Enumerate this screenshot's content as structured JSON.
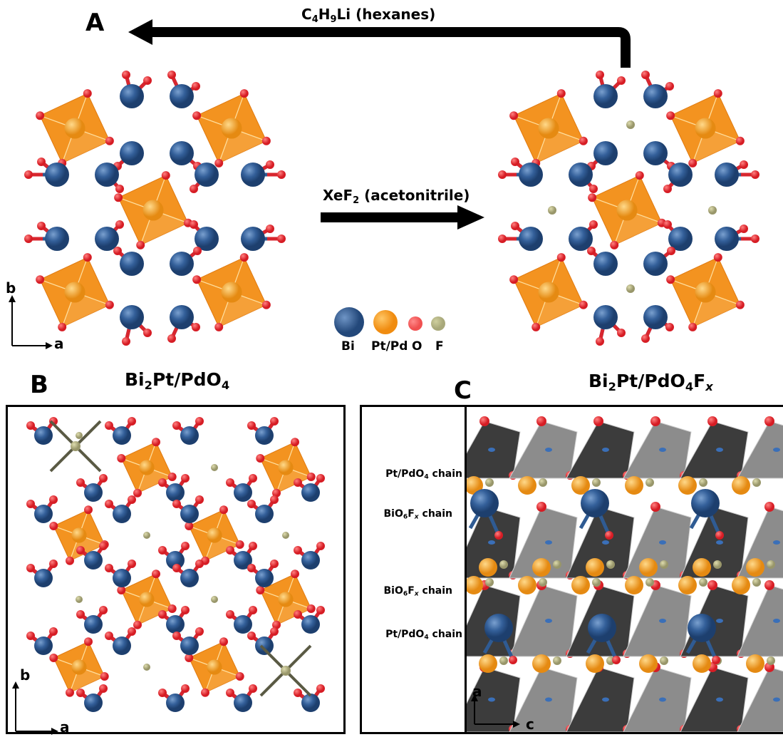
{
  "panels": {
    "a": {
      "letter": "A"
    },
    "b": {
      "letter": "B"
    },
    "c": {
      "letter": "C"
    }
  },
  "formulas": {
    "parent": {
      "main": "Bi",
      "s1": "2",
      "mid": "Pt/PdO",
      "s2": "4"
    },
    "fluorinated": {
      "main": "Bi",
      "s1": "2",
      "mid": "Pt/PdO",
      "s2": "4",
      "f": "F",
      "x": "x"
    }
  },
  "reactions": {
    "reduction": {
      "pre": "C",
      "s1": "4",
      "mid": "H",
      "s2": "9",
      "post": "Li (hexanes)"
    },
    "fluorination": {
      "pre": "XeF",
      "s1": "2",
      "post": " (acetonitrile)"
    }
  },
  "legend": {
    "items": [
      {
        "label": "Bi",
        "color": "#2f5b93"
      },
      {
        "label": "Pt/Pd",
        "color": "#f59a1c"
      },
      {
        "label": "O",
        "color": "#ee4b4b"
      },
      {
        "label": "F",
        "color": "#b5b57c"
      }
    ]
  },
  "axes": {
    "a_panel": {
      "up": "b",
      "right": "a"
    },
    "b_panel": {
      "up": "b",
      "right": "a"
    },
    "c_panel": {
      "up": "a",
      "right": "c"
    }
  },
  "chains": {
    "c1": {
      "pre": "Pt/PdO",
      "s": "4",
      "post": " chain"
    },
    "c2": {
      "pre": "BiO",
      "s": "6",
      "mid": "F",
      "x": "x",
      "post": " chain"
    },
    "c3": {
      "pre": "BiO",
      "s": "6",
      "mid": "F",
      "x": "x",
      "post": " chain"
    },
    "c4": {
      "pre": "Pt/PdO",
      "s": "4",
      "post": " chain"
    }
  },
  "colors": {
    "bi": "#2f5b93",
    "pt": "#f59a1c",
    "octahedron": "#f39320",
    "oxygen": "#e8262e",
    "fluorine": "#a8a67a",
    "polyhedron_dark": "#3a3a3a",
    "polyhedron_light": "#9a9a9a"
  }
}
